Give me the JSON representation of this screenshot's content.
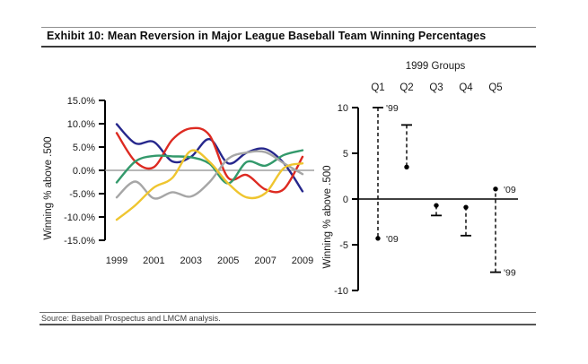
{
  "header": {
    "title": "Exhibit 10: Mean Reversion in Major League Baseball Team Winning Percentages"
  },
  "footer": {
    "source": "Source: Baseball Prospectus and LMCM analysis."
  },
  "colors": {
    "axis": "#000000",
    "zero_line_left": "#8c8c8c",
    "zero_line_right": "#000000",
    "tick_text": "#1a1a1a"
  },
  "chart_data": [
    {
      "type": "line",
      "title": "",
      "ylabel": "Winning % above .500",
      "ylim": [
        -15,
        15
      ],
      "grid": false,
      "legend": "none",
      "x": [
        1999,
        2000,
        2001,
        2002,
        2003,
        2004,
        2005,
        2006,
        2007,
        2008,
        2009
      ],
      "x_tick_labels": [
        "1999",
        "2001",
        "2003",
        "2005",
        "2007",
        "2009"
      ],
      "y_ticks": [
        {
          "value": 15,
          "label": "15.0%"
        },
        {
          "value": 10,
          "label": "10.0%"
        },
        {
          "value": 5,
          "label": "5.0%"
        },
        {
          "value": 0,
          "label": "0.0%"
        },
        {
          "value": -5,
          "label": "-5.0%"
        },
        {
          "value": -10,
          "label": "-10.0%"
        },
        {
          "value": -15,
          "label": "-15.0%"
        }
      ],
      "series": [
        {
          "name": "navy",
          "color": "#26278c",
          "values": [
            9.9,
            5.8,
            6.1,
            1.9,
            2.9,
            6.7,
            1.5,
            3.8,
            4.6,
            1.5,
            -4.5
          ]
        },
        {
          "name": "red",
          "color": "#dd2a21",
          "values": [
            8.0,
            1.9,
            0.7,
            6.6,
            9.0,
            7.5,
            -1.6,
            -1.0,
            -4.1,
            -4.0,
            2.9
          ]
        },
        {
          "name": "green",
          "color": "#33996b",
          "values": [
            -2.6,
            1.9,
            3.1,
            3.0,
            2.8,
            1.4,
            -2.8,
            1.8,
            1.0,
            3.3,
            4.3
          ]
        },
        {
          "name": "gray",
          "color": "#a6a6a6",
          "values": [
            -5.8,
            -2.4,
            -6.0,
            -4.7,
            -5.6,
            -2.5,
            2.5,
            3.8,
            3.9,
            1.5,
            -0.8
          ]
        },
        {
          "name": "yellow",
          "color": "#efc52f",
          "values": [
            -10.6,
            -7.5,
            -3.7,
            -1.6,
            4.2,
            1.8,
            -2.8,
            -5.8,
            -4.9,
            0.5,
            1.5
          ]
        }
      ]
    },
    {
      "type": "dumbbell_range",
      "title": "1999 Groups",
      "ylabel": "Winning % above .500",
      "ylim": [
        -10,
        10
      ],
      "grid": false,
      "categories": [
        "Q1",
        "Q2",
        "Q3",
        "Q4",
        "Q5"
      ],
      "y_ticks": [
        {
          "value": 10,
          "label": "10"
        },
        {
          "value": 5,
          "label": "5"
        },
        {
          "value": 0,
          "label": "0"
        },
        {
          "value": -5,
          "label": "-5"
        },
        {
          "value": -10,
          "label": "-10"
        }
      ],
      "series": [
        {
          "name": "1999",
          "marker": "tbar",
          "values": [
            10.0,
            8.1,
            -1.8,
            -4.0,
            -8.0
          ]
        },
        {
          "name": "2009",
          "marker": "dot",
          "values": [
            -4.3,
            3.5,
            -0.7,
            -0.9,
            1.1
          ]
        }
      ],
      "annotations": [
        {
          "category": "Q1",
          "series": "1999",
          "label": "'99"
        },
        {
          "category": "Q1",
          "series": "2009",
          "label": "'09"
        },
        {
          "category": "Q5",
          "series": "2009",
          "label": "'09"
        },
        {
          "category": "Q5",
          "series": "1999",
          "label": "'99"
        }
      ]
    }
  ]
}
